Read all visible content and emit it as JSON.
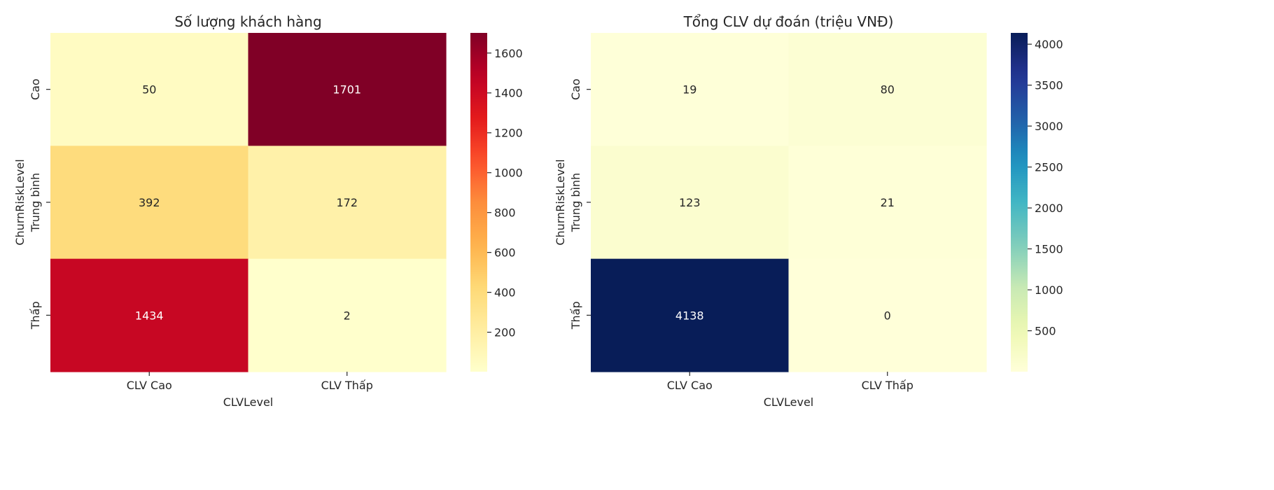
{
  "chart_data": [
    {
      "type": "heatmap",
      "title": "Số lượng khách hàng",
      "xlabel": "CLVLevel",
      "ylabel": "ChurnRiskLevel",
      "x_categories": [
        "CLV Cao",
        "CLV Thấp"
      ],
      "y_categories": [
        "Cao",
        "Trung bình",
        "Thấp"
      ],
      "values": [
        [
          50,
          1701
        ],
        [
          392,
          172
        ],
        [
          1434,
          2
        ]
      ],
      "value_labels": [
        [
          "50",
          "1701"
        ],
        [
          "392",
          "172"
        ],
        [
          "1434",
          "2"
        ]
      ],
      "colormap": "YlOrRd",
      "vmin": 2,
      "vmax": 1701,
      "colorbar_ticks": [
        200,
        400,
        600,
        800,
        1000,
        1200,
        1400,
        1600
      ],
      "colorbar_tick_labels": [
        "200",
        "400",
        "600",
        "800",
        "1000",
        "1200",
        "1400",
        "1600"
      ]
    },
    {
      "type": "heatmap",
      "title": "Tổng CLV dự đoán (triệu VNĐ)",
      "xlabel": "CLVLevel",
      "ylabel": "ChurnRiskLevel",
      "x_categories": [
        "CLV Cao",
        "CLV Thấp"
      ],
      "y_categories": [
        "Cao",
        "Trung bình",
        "Thấp"
      ],
      "values": [
        [
          19,
          80
        ],
        [
          123,
          21
        ],
        [
          4138,
          0
        ]
      ],
      "value_labels": [
        [
          "19",
          "80"
        ],
        [
          "123",
          "21"
        ],
        [
          "4138",
          "0"
        ]
      ],
      "colormap": "YlGnBu",
      "vmin": 0,
      "vmax": 4138,
      "colorbar_ticks": [
        500,
        1000,
        1500,
        2000,
        2500,
        3000,
        3500,
        4000
      ],
      "colorbar_tick_labels": [
        "500",
        "1000",
        "1500",
        "2000",
        "2500",
        "3000",
        "3500",
        "4000"
      ]
    }
  ]
}
